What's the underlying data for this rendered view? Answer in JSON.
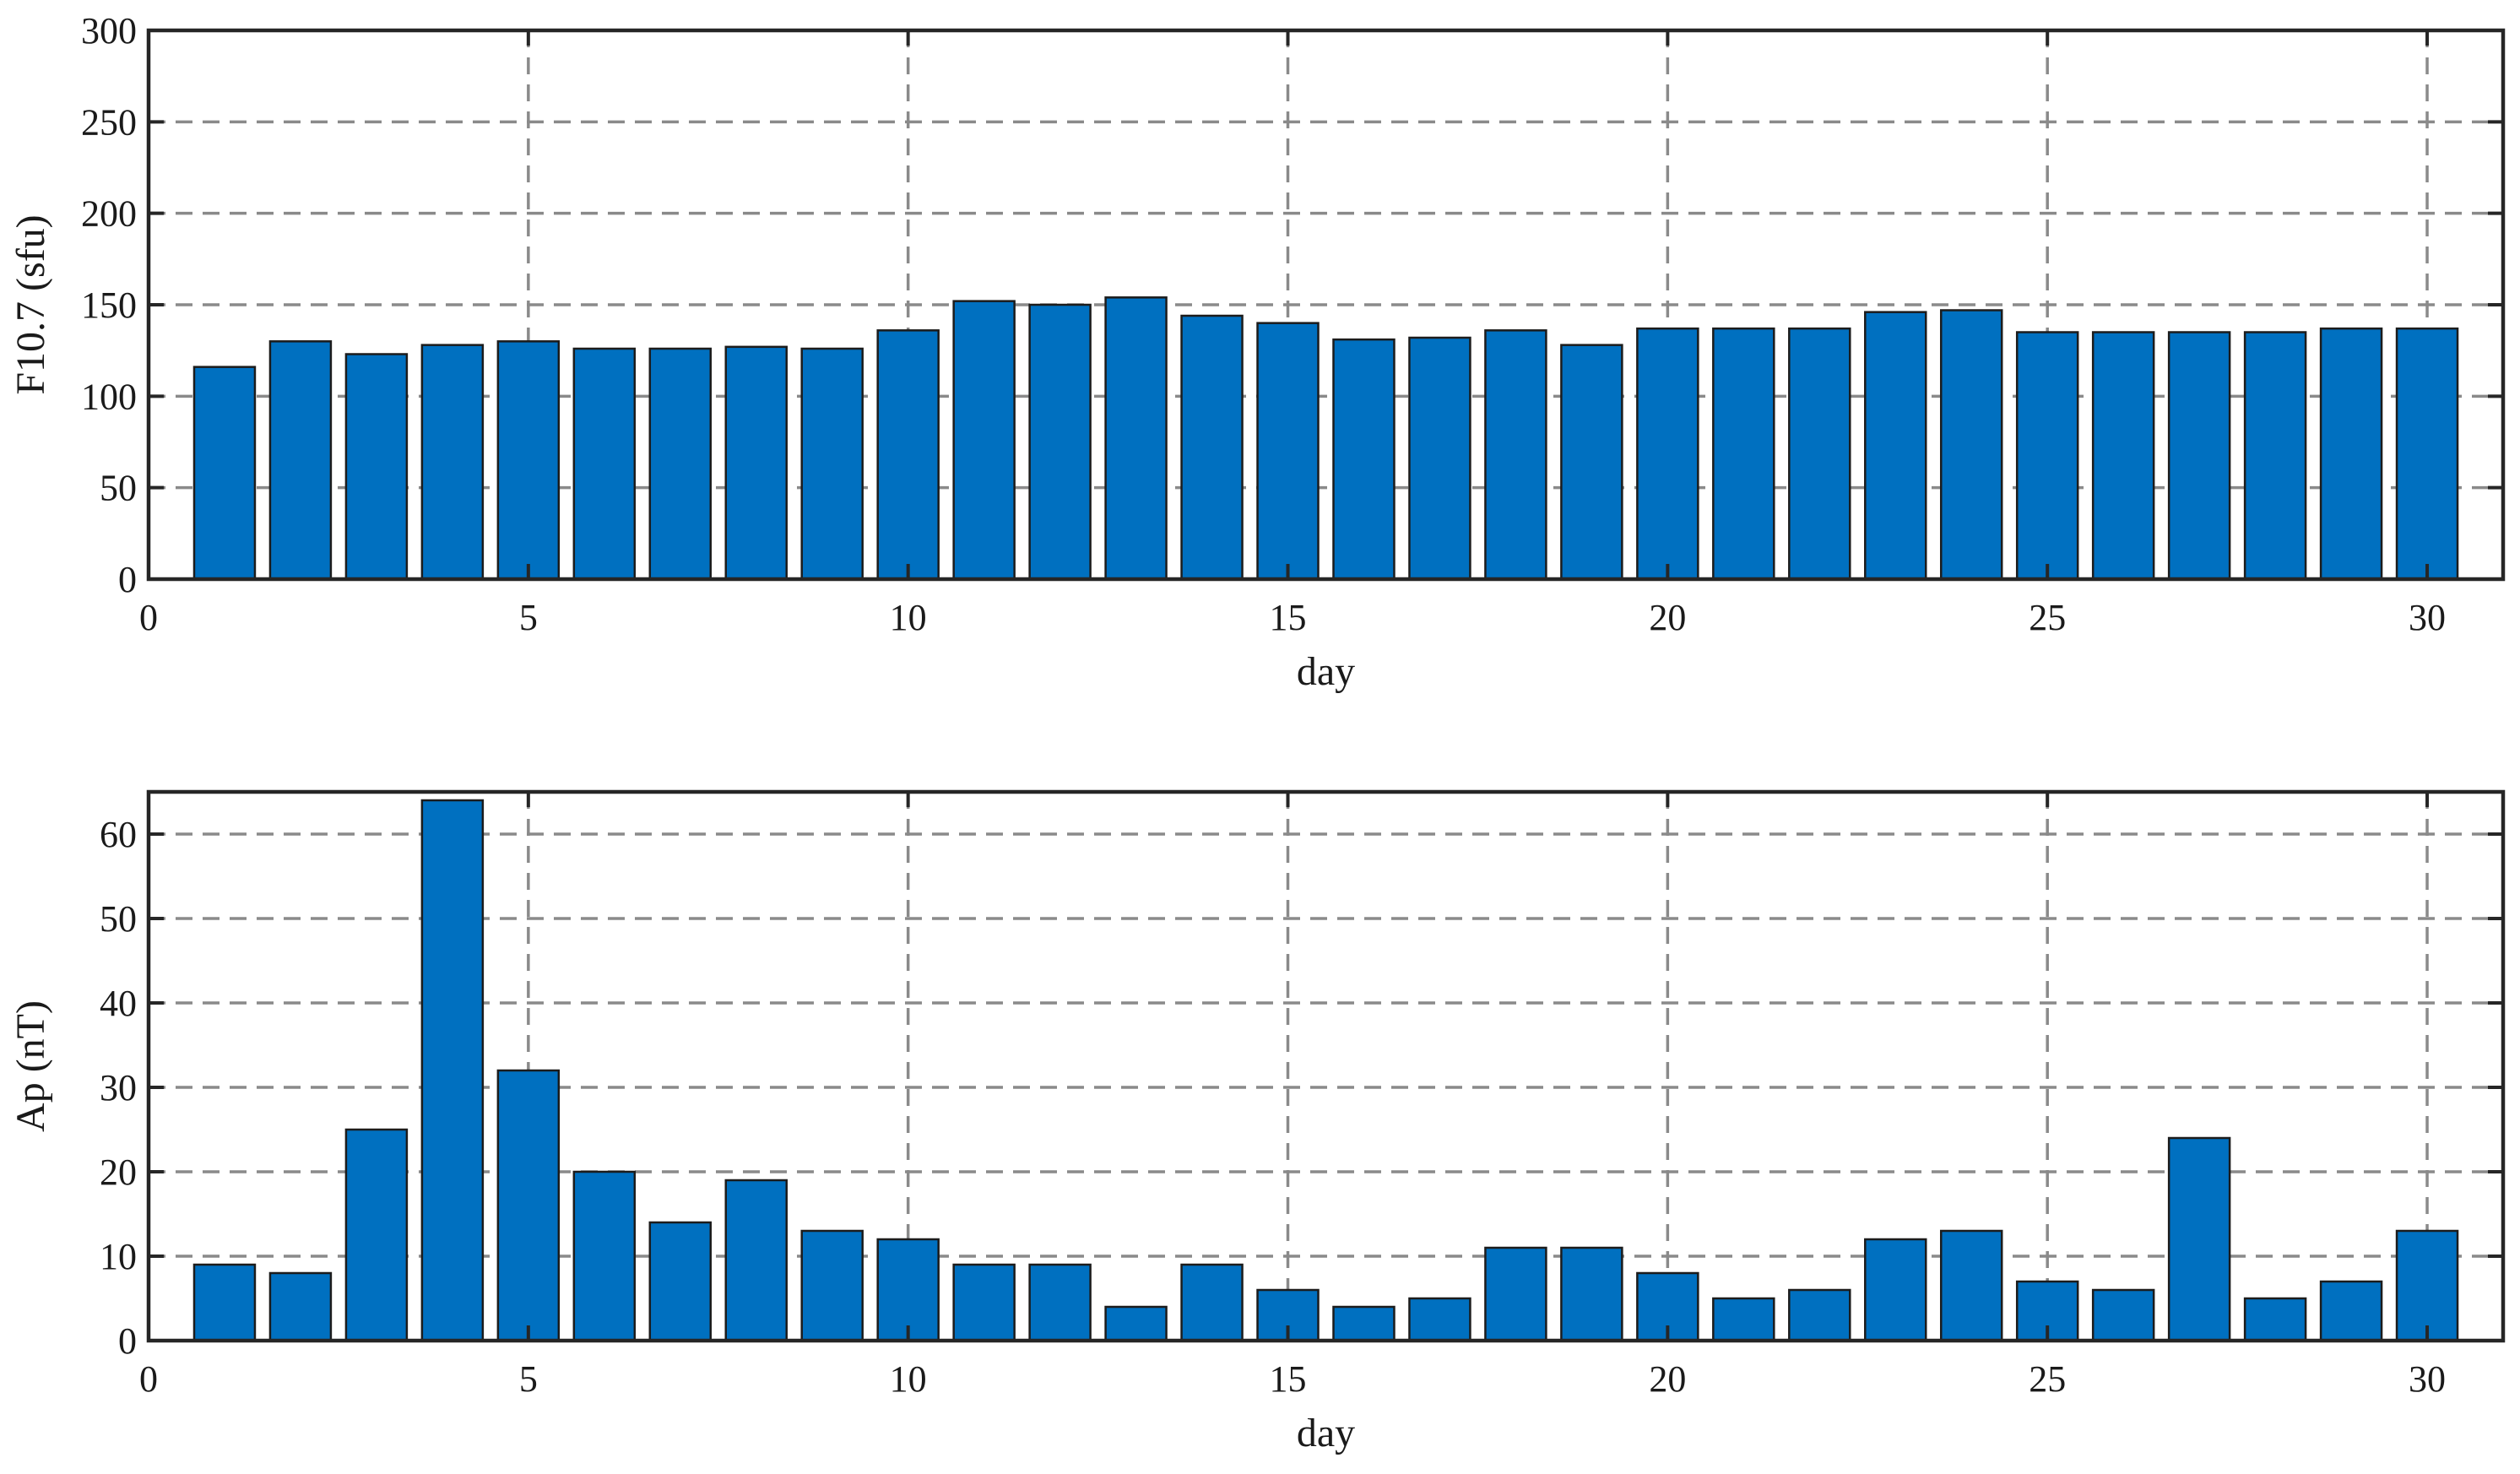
{
  "chart_data": [
    {
      "type": "bar",
      "xlabel": "day",
      "ylabel": "F10.7 (sfu)",
      "xlim": [
        0,
        31
      ],
      "ylim": [
        0,
        300
      ],
      "xticks": [
        0,
        5,
        10,
        15,
        20,
        25,
        30
      ],
      "yticks": [
        0,
        50,
        100,
        150,
        200,
        250,
        300
      ],
      "grid": true,
      "bar_color": "#0070C0",
      "x": [
        1,
        2,
        3,
        4,
        5,
        6,
        7,
        8,
        9,
        10,
        11,
        12,
        13,
        14,
        15,
        16,
        17,
        18,
        19,
        20,
        21,
        22,
        23,
        24,
        25,
        26,
        27,
        28,
        29,
        30
      ],
      "values": [
        116,
        130,
        123,
        128,
        130,
        126,
        126,
        127,
        126,
        136,
        152,
        150,
        154,
        144,
        140,
        131,
        132,
        136,
        128,
        137,
        137,
        137,
        146,
        147,
        135,
        135,
        135,
        135,
        137,
        137
      ]
    },
    {
      "type": "bar",
      "xlabel": "day",
      "ylabel": "Ap (nT)",
      "xlim": [
        0,
        31
      ],
      "ylim": [
        0,
        65
      ],
      "xticks": [
        0,
        5,
        10,
        15,
        20,
        25,
        30
      ],
      "yticks": [
        0,
        10,
        20,
        30,
        40,
        50,
        60
      ],
      "grid": true,
      "bar_color": "#0070C0",
      "x": [
        1,
        2,
        3,
        4,
        5,
        6,
        7,
        8,
        9,
        10,
        11,
        12,
        13,
        14,
        15,
        16,
        17,
        18,
        19,
        20,
        21,
        22,
        23,
        24,
        25,
        26,
        27,
        28,
        29,
        30
      ],
      "values": [
        9,
        8,
        25,
        64,
        32,
        20,
        14,
        19,
        13,
        12,
        9,
        9,
        4,
        9,
        6,
        4,
        5,
        11,
        11,
        8,
        5,
        6,
        12,
        13,
        7,
        6,
        24,
        5,
        7,
        13
      ]
    }
  ]
}
